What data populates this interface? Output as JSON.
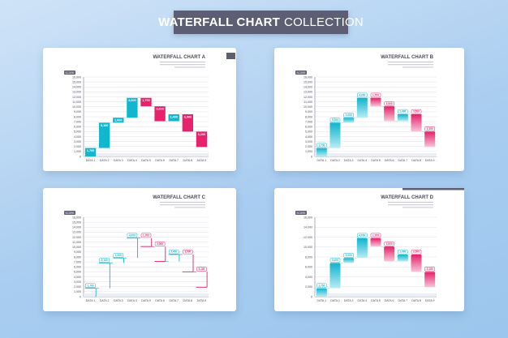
{
  "banner": {
    "title_bold": "WATERFALL CHART",
    "title_light": "COLLECTION"
  },
  "colors": {
    "teal": "#12b7cf",
    "pink": "#e5226b",
    "banner": "#5d5d73",
    "grid": "#e2e2ea",
    "axis": "#9a9aab",
    "text": "#4a4a5a"
  },
  "chart_data": [
    {
      "type": "bar",
      "style": "solid",
      "title": "WATERFALL CHART A",
      "ylabel": "SCORE",
      "ylim": [
        0,
        16000
      ],
      "y_ticks": [
        "0",
        "1,000",
        "2,000",
        "3,000",
        "4,000",
        "5,000",
        "6,000",
        "7,000",
        "8,000",
        "9,000",
        "10,000",
        "11,000",
        "12,000",
        "13,000",
        "14,000",
        "15,000",
        "16,000"
      ],
      "categories": [
        "DATA 1",
        "DATA 2",
        "DATA 3",
        "DATA 4",
        "DATA 5",
        "DATA 6",
        "DATA 7",
        "DATA 8",
        "DATA 9"
      ],
      "values": [
        1700,
        5100,
        1000,
        4000,
        -1700,
        -3000,
        1400,
        -3500,
        -3100
      ],
      "value_labels": [
        "1,700",
        "5,100",
        "1,000",
        "4,000",
        "1,700",
        "3,000",
        "1,400",
        "3,500",
        "3,100"
      ],
      "grid": true
    },
    {
      "type": "bar",
      "style": "gradient",
      "title": "WATERFALL CHART B",
      "ylabel": "SCORE",
      "ylim": [
        0,
        16000
      ],
      "y_ticks": [
        "0",
        "1,000",
        "2,000",
        "3,000",
        "4,000",
        "5,000",
        "6,000",
        "7,000",
        "8,000",
        "9,000",
        "10,000",
        "11,000",
        "12,000",
        "13,000",
        "14,000",
        "15,000",
        "16,000"
      ],
      "categories": [
        "DATA 1",
        "DATA 2",
        "DATA 3",
        "DATA 4",
        "DATA 5",
        "DATA 6",
        "DATA 7",
        "DATA 8",
        "DATA 9"
      ],
      "values": [
        1700,
        5100,
        1000,
        4000,
        -1700,
        -3000,
        1400,
        -3500,
        -3100
      ],
      "value_labels": [
        "1,700",
        "5,100",
        "1,000",
        "4,000",
        "1,700",
        "3,000",
        "1,400",
        "3,500",
        "3,100"
      ],
      "grid": true
    },
    {
      "type": "bar",
      "style": "outline",
      "title": "WATERFALL CHART C",
      "ylabel": "SCORE",
      "ylim": [
        0,
        16000
      ],
      "y_ticks": [
        "0",
        "1,000",
        "2,000",
        "3,000",
        "4,000",
        "5,000",
        "6,000",
        "7,000",
        "8,000",
        "9,000",
        "10,000",
        "11,000",
        "12,000",
        "13,000",
        "14,000",
        "15,000",
        "16,000"
      ],
      "categories": [
        "DATA 1",
        "DATA 2",
        "DATA 3",
        "DATA 4",
        "DATA 5",
        "DATA 6",
        "DATA 7",
        "DATA 8",
        "DATA 9"
      ],
      "values": [
        1700,
        5100,
        1000,
        4000,
        -1700,
        -3000,
        1400,
        -3500,
        -3100
      ],
      "value_labels": [
        "1,700",
        "5,100",
        "1,000",
        "4,000",
        "1,700",
        "3,000",
        "1,400",
        "3,500",
        "3,100"
      ],
      "grid": true
    },
    {
      "type": "bar",
      "style": "rounded-gradient",
      "title": "WATERFALL CHART D",
      "ylabel": "SCORE",
      "ylim": [
        0,
        16000
      ],
      "y_ticks": [
        "0",
        "2,000",
        "4,000",
        "6,000",
        "8,000",
        "10,000",
        "12,000",
        "14,000",
        "16,000"
      ],
      "categories": [
        "DATA 1",
        "DATA 2",
        "DATA 3",
        "DATA 4",
        "DATA 5",
        "DATA 6",
        "DATA 7",
        "DATA 8",
        "DATA 9"
      ],
      "values": [
        1700,
        5100,
        1000,
        4000,
        -1700,
        -3000,
        1400,
        -3500,
        -3100
      ],
      "value_labels": [
        "1,700",
        "5,100",
        "1,000",
        "4,000",
        "1,700",
        "3,000",
        "1,400",
        "3,500",
        "3,100"
      ],
      "grid": true
    }
  ]
}
